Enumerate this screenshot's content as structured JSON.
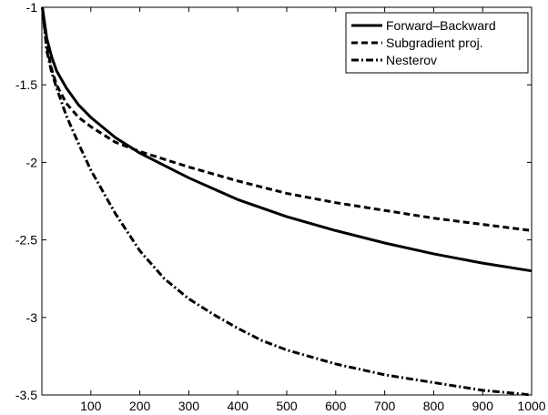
{
  "chart_data": {
    "type": "line",
    "title": "",
    "xlabel": "",
    "ylabel": "",
    "xlim": [
      0,
      1000
    ],
    "ylim": [
      -3.5,
      -1
    ],
    "xticks": [
      100,
      200,
      300,
      400,
      500,
      600,
      700,
      800,
      900,
      1000
    ],
    "xtick_labels": [
      "100",
      "200",
      "300",
      "400",
      "500",
      "600",
      "700",
      "800",
      "900",
      "1000"
    ],
    "yticks": [
      -1,
      -1.5,
      -2,
      -2.5,
      -3,
      -3.5
    ],
    "ytick_labels": [
      "-1",
      "-1.5",
      "-2",
      "-2.5",
      "-3",
      "-3.5"
    ],
    "grid": false,
    "legend_position": "top-right",
    "series": [
      {
        "name": "Forward–Backward",
        "style": "solid",
        "color": "#000000",
        "x": [
          1,
          10,
          20,
          30,
          50,
          75,
          100,
          150,
          200,
          300,
          400,
          500,
          600,
          700,
          800,
          900,
          1000
        ],
        "y": [
          -1.0,
          -1.2,
          -1.32,
          -1.41,
          -1.52,
          -1.63,
          -1.71,
          -1.84,
          -1.94,
          -2.1,
          -2.24,
          -2.35,
          -2.44,
          -2.52,
          -2.59,
          -2.65,
          -2.7
        ]
      },
      {
        "name": "Subgradient proj.",
        "style": "dashed",
        "color": "#000000",
        "x": [
          1,
          10,
          20,
          30,
          50,
          75,
          100,
          150,
          200,
          300,
          400,
          500,
          600,
          700,
          800,
          900,
          1000
        ],
        "y": [
          -1.0,
          -1.25,
          -1.4,
          -1.5,
          -1.62,
          -1.71,
          -1.77,
          -1.87,
          -1.93,
          -2.03,
          -2.12,
          -2.2,
          -2.26,
          -2.31,
          -2.36,
          -2.4,
          -2.44
        ]
      },
      {
        "name": "Nesterov",
        "style": "dashdot",
        "color": "#000000",
        "x": [
          1,
          10,
          20,
          30,
          50,
          75,
          100,
          150,
          200,
          250,
          300,
          350,
          400,
          450,
          500,
          600,
          700,
          800,
          900,
          1000
        ],
        "y": [
          -1.0,
          -1.28,
          -1.42,
          -1.52,
          -1.7,
          -1.88,
          -2.05,
          -2.33,
          -2.57,
          -2.75,
          -2.88,
          -2.98,
          -3.07,
          -3.15,
          -3.21,
          -3.3,
          -3.37,
          -3.42,
          -3.47,
          -3.5
        ]
      }
    ]
  }
}
